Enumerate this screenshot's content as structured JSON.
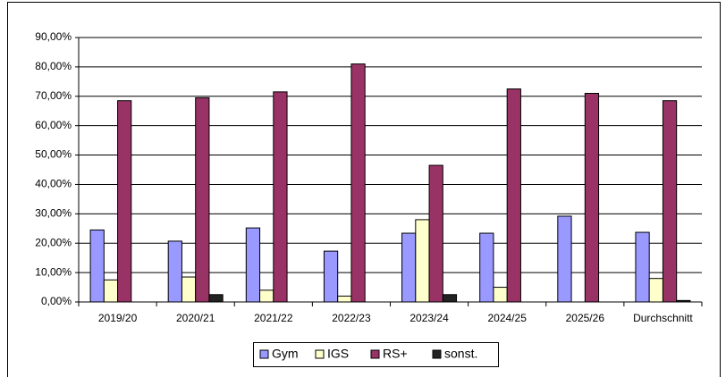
{
  "chart_data": {
    "type": "bar",
    "categories": [
      "2019/20",
      "2020/21",
      "2021/22",
      "2022/23",
      "2023/24",
      "2024/25",
      "2025/26",
      "Durchschnitt"
    ],
    "series": [
      {
        "name": "Gym",
        "color": "#9999ff",
        "values": [
          24.5,
          20.7,
          25.2,
          17.3,
          23.4,
          23.4,
          29.2,
          23.7
        ]
      },
      {
        "name": "IGS",
        "color": "#ffffcc",
        "values": [
          7.5,
          8.5,
          4,
          2,
          28,
          5,
          0,
          8
        ]
      },
      {
        "name": "RS+",
        "color": "#993366",
        "values": [
          68.5,
          69.5,
          71.5,
          81,
          46.5,
          72.5,
          71,
          68.5
        ]
      },
      {
        "name": "sonst.",
        "color": "#222222",
        "values": [
          0,
          2.5,
          0,
          0,
          2.5,
          0,
          0,
          0.5
        ]
      }
    ],
    "ylim": [
      0,
      90
    ],
    "yticks": [
      {
        "value": 0,
        "label": "0,00%"
      },
      {
        "value": 10,
        "label": "10,00%"
      },
      {
        "value": 20,
        "label": "20,00%"
      },
      {
        "value": 30,
        "label": "30,00%"
      },
      {
        "value": 40,
        "label": "40,00%"
      },
      {
        "value": 50,
        "label": "50,00%"
      },
      {
        "value": 60,
        "label": "60,00%"
      },
      {
        "value": 70,
        "label": "70,00%"
      },
      {
        "value": 80,
        "label": "80,00%"
      },
      {
        "value": 90,
        "label": "90,00%"
      }
    ],
    "grid": true,
    "legend": "bottom"
  }
}
